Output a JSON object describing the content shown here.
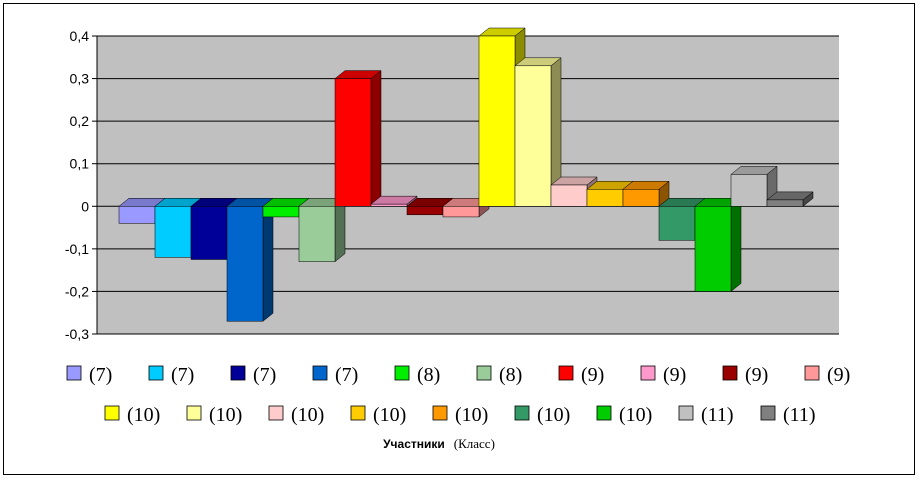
{
  "chart_data": {
    "type": "bar",
    "style": "3d-columns",
    "title": "",
    "xlabel_bold": "Участники",
    "xlabel_normal": "(Класс)",
    "ylabel": "",
    "ylim": [
      -0.3,
      0.4
    ],
    "yticks": [
      -0.3,
      -0.2,
      -0.1,
      0,
      0.1,
      0.2,
      0.3,
      0.4
    ],
    "ytick_labels": [
      "-0,3",
      "-0,2",
      "-0,1",
      "0",
      "0,1",
      "0,2",
      "0,3",
      "0,4"
    ],
    "grid": true,
    "plot_background": "#c0c0c0",
    "legend_position": "bottom",
    "series": [
      {
        "name": "(7)",
        "value": -0.04,
        "color": "#9999ff"
      },
      {
        "name": "(7)",
        "value": -0.12,
        "color": "#00ccff"
      },
      {
        "name": "(7)",
        "value": -0.125,
        "color": "#000099"
      },
      {
        "name": "(7)",
        "value": -0.27,
        "color": "#0066cc"
      },
      {
        "name": "(8)",
        "value": -0.025,
        "color": "#00ee00"
      },
      {
        "name": "(8)",
        "value": -0.13,
        "color": "#99cc99"
      },
      {
        "name": "(9)",
        "value": 0.3,
        "color": "#ff0000"
      },
      {
        "name": "(9)",
        "value": 0.005,
        "color": "#ff99cc"
      },
      {
        "name": "(9)",
        "value": -0.02,
        "color": "#990000"
      },
      {
        "name": "(9)",
        "value": -0.025,
        "color": "#ff9999"
      },
      {
        "name": "(10)",
        "value": 0.4,
        "color": "#ffff00"
      },
      {
        "name": "(10)",
        "value": 0.33,
        "color": "#ffff99"
      },
      {
        "name": "(10)",
        "value": 0.05,
        "color": "#ffcccc"
      },
      {
        "name": "(10)",
        "value": 0.04,
        "color": "#ffcc00"
      },
      {
        "name": "(10)",
        "value": 0.04,
        "color": "#ff9900"
      },
      {
        "name": "(10)",
        "value": -0.08,
        "color": "#339966"
      },
      {
        "name": "(10)",
        "value": -0.2,
        "color": "#00cc00"
      },
      {
        "name": "(11)",
        "value": 0.075,
        "color": "#c0c0c0"
      },
      {
        "name": "(11)",
        "value": 0.015,
        "color": "#808080"
      }
    ]
  }
}
